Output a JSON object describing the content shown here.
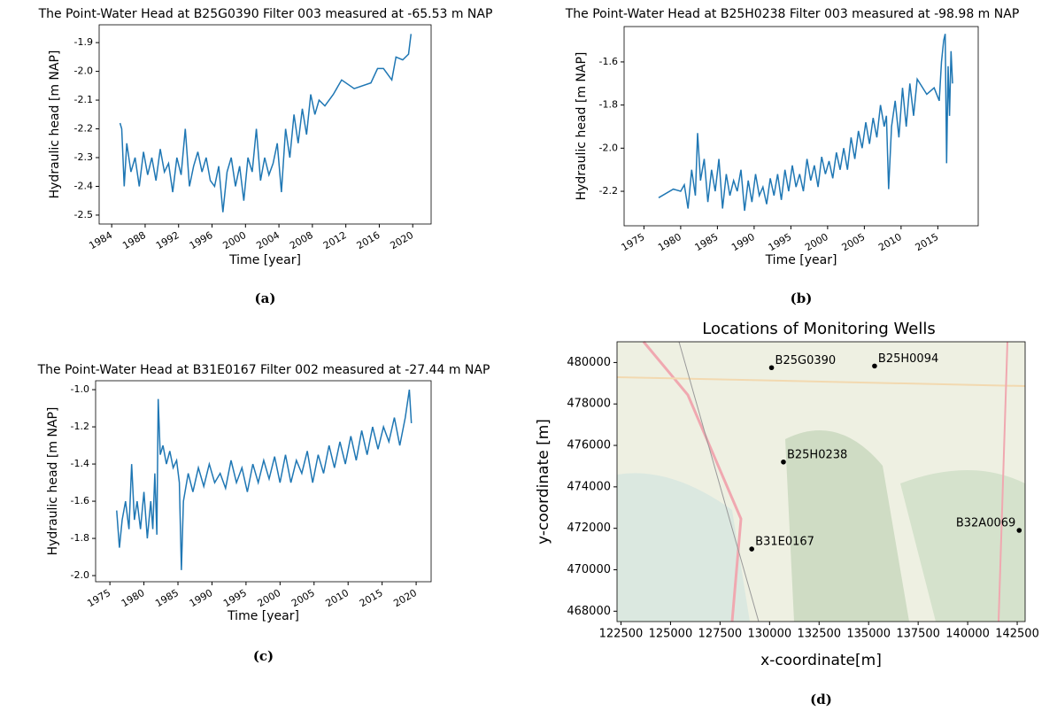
{
  "chart_data": [
    {
      "type": "line",
      "title": "The Point-Water Head at B25G0390 Filter 003 measured at -65.53 m NAP",
      "xlabel": "Time [year]",
      "ylabel": "Hydraulic head [m NAP]",
      "caption": "(a)",
      "color": "#1f77b4",
      "x": [
        1985.0,
        1985.2,
        1985.5,
        1985.8,
        1986.3,
        1986.8,
        1987.3,
        1987.8,
        1988.3,
        1988.8,
        1989.3,
        1989.8,
        1990.3,
        1990.8,
        1991.3,
        1991.8,
        1992.3,
        1992.8,
        1993.3,
        1993.8,
        1994.3,
        1994.8,
        1995.3,
        1995.8,
        1996.3,
        1996.8,
        1997.3,
        1997.8,
        1998.3,
        1998.8,
        1999.3,
        1999.8,
        2000.3,
        2000.8,
        2001.3,
        2001.8,
        2002.3,
        2002.8,
        2003.3,
        2003.8,
        2004.3,
        2004.8,
        2005.3,
        2005.8,
        2006.3,
        2006.8,
        2007.3,
        2007.8,
        2008.3,
        2008.8,
        2009.5,
        2010.5,
        2011.5,
        2013.0,
        2015.0,
        2015.8,
        2016.5,
        2017.5,
        2018.0,
        2018.8,
        2019.5,
        2019.8
      ],
      "values": [
        -2.18,
        -2.2,
        -2.4,
        -2.25,
        -2.35,
        -2.3,
        -2.4,
        -2.28,
        -2.36,
        -2.3,
        -2.38,
        -2.27,
        -2.35,
        -2.32,
        -2.42,
        -2.3,
        -2.36,
        -2.2,
        -2.4,
        -2.33,
        -2.28,
        -2.35,
        -2.3,
        -2.38,
        -2.4,
        -2.33,
        -2.49,
        -2.35,
        -2.3,
        -2.4,
        -2.33,
        -2.45,
        -2.3,
        -2.35,
        -2.2,
        -2.38,
        -2.3,
        -2.36,
        -2.32,
        -2.25,
        -2.42,
        -2.2,
        -2.3,
        -2.15,
        -2.25,
        -2.13,
        -2.22,
        -2.08,
        -2.15,
        -2.1,
        -2.12,
        -2.08,
        -2.03,
        -2.06,
        -2.04,
        -1.99,
        -1.99,
        -2.03,
        -1.95,
        -1.96,
        -1.94,
        -1.87
      ],
      "xlim": [
        1982.5,
        2022.2
      ],
      "ylim": [
        -2.531,
        -1.838
      ],
      "xticks": [
        1984,
        1988,
        1992,
        1996,
        2000,
        2004,
        2008,
        2012,
        2016,
        2020
      ],
      "yticks": [
        -1.9,
        {
          "value": -2,
          "label": "-2.0"
        },
        -2.1,
        -2.2,
        -2.3,
        -2.4,
        -2.5
      ]
    },
    {
      "type": "line",
      "title": "The Point-Water Head at B25H0238 Filter 003 measured at -98.98 m NAP",
      "xlabel": "Time [year]",
      "ylabel": "Hydraulic head [m NAP]",
      "caption": "(b)",
      "color": "#1f77b4",
      "x": [
        1977.0,
        1979.0,
        1980.0,
        1980.5,
        1981.0,
        1981.5,
        1982.0,
        1982.3,
        1982.7,
        1983.2,
        1983.7,
        1984.2,
        1984.7,
        1985.2,
        1985.7,
        1986.2,
        1986.7,
        1987.2,
        1987.7,
        1988.2,
        1988.7,
        1989.2,
        1989.7,
        1990.2,
        1990.7,
        1991.2,
        1991.7,
        1992.2,
        1992.7,
        1993.2,
        1993.7,
        1994.2,
        1994.7,
        1995.2,
        1995.7,
        1996.2,
        1996.7,
        1997.2,
        1997.7,
        1998.2,
        1998.7,
        1999.2,
        1999.7,
        2000.2,
        2000.7,
        2001.2,
        2001.7,
        2002.2,
        2002.7,
        2003.2,
        2003.7,
        2004.2,
        2004.7,
        2005.2,
        2005.7,
        2006.2,
        2006.7,
        2007.2,
        2007.7,
        2008.0,
        2008.3,
        2008.7,
        2009.2,
        2009.7,
        2010.2,
        2010.7,
        2011.2,
        2011.7,
        2012.2,
        2013.5,
        2014.5,
        2015.2,
        2015.5,
        2015.8,
        2016.0,
        2016.2,
        2016.4,
        2016.6,
        2016.8,
        2017.0
      ],
      "values": [
        -2.23,
        -2.19,
        -2.2,
        -2.17,
        -2.28,
        -2.1,
        -2.22,
        -1.93,
        -2.15,
        -2.05,
        -2.25,
        -2.1,
        -2.2,
        -2.05,
        -2.28,
        -2.12,
        -2.22,
        -2.15,
        -2.2,
        -2.1,
        -2.29,
        -2.15,
        -2.25,
        -2.12,
        -2.22,
        -2.18,
        -2.26,
        -2.14,
        -2.22,
        -2.12,
        -2.24,
        -2.1,
        -2.2,
        -2.08,
        -2.18,
        -2.12,
        -2.2,
        -2.05,
        -2.15,
        -2.08,
        -2.18,
        -2.04,
        -2.12,
        -2.06,
        -2.14,
        -2.02,
        -2.1,
        -2.0,
        -2.1,
        -1.95,
        -2.05,
        -1.92,
        -2.0,
        -1.88,
        -1.98,
        -1.86,
        -1.95,
        -1.8,
        -1.9,
        -1.85,
        -2.19,
        -1.9,
        -1.78,
        -1.95,
        -1.72,
        -1.9,
        -1.7,
        -1.85,
        -1.68,
        -1.75,
        -1.72,
        -1.78,
        -1.6,
        -1.5,
        -1.47,
        -2.07,
        -1.62,
        -1.85,
        -1.55,
        -1.7
      ],
      "xlim": [
        1972.3,
        2020.5
      ],
      "ylim": [
        -2.36,
        -1.436
      ],
      "xticks": [
        1975,
        1980,
        1985,
        1990,
        1995,
        2000,
        2005,
        2010,
        2015
      ],
      "yticks": [
        -1.6,
        -1.8,
        {
          "value": -2,
          "label": "-2.0"
        },
        -2.2
      ]
    },
    {
      "type": "line",
      "title": "The Point-Water Head at B31E0167 Filter 002 measured at -27.44 m NAP",
      "xlabel": "Time [year]",
      "ylabel": "Hydraulic head [m NAP]",
      "caption": "(c)",
      "color": "#1f77b4",
      "x": [
        1976.0,
        1976.4,
        1976.8,
        1977.3,
        1977.8,
        1978.2,
        1978.6,
        1979.0,
        1979.5,
        1980.0,
        1980.5,
        1981.0,
        1981.3,
        1981.6,
        1981.9,
        1982.1,
        1982.4,
        1982.8,
        1983.3,
        1983.8,
        1984.3,
        1984.8,
        1985.2,
        1985.5,
        1985.8,
        1986.5,
        1987.2,
        1988.0,
        1988.8,
        1989.6,
        1990.4,
        1991.2,
        1992.0,
        1992.8,
        1993.6,
        1994.4,
        1995.2,
        1996.0,
        1996.8,
        1997.6,
        1998.4,
        1999.2,
        2000.0,
        2000.8,
        2001.6,
        2002.4,
        2003.2,
        2004.0,
        2004.8,
        2005.6,
        2006.4,
        2007.2,
        2008.0,
        2008.8,
        2009.6,
        2010.4,
        2011.2,
        2012.0,
        2012.8,
        2013.6,
        2014.4,
        2015.2,
        2016.0,
        2016.8,
        2017.6,
        2018.4,
        2019.0,
        2019.3
      ],
      "values": [
        -1.65,
        -1.85,
        -1.7,
        -1.6,
        -1.75,
        -1.4,
        -1.7,
        -1.6,
        -1.75,
        -1.55,
        -1.8,
        -1.6,
        -1.75,
        -1.45,
        -1.78,
        -1.05,
        -1.35,
        -1.3,
        -1.4,
        -1.33,
        -1.42,
        -1.38,
        -1.5,
        -1.97,
        -1.6,
        -1.45,
        -1.55,
        -1.42,
        -1.52,
        -1.4,
        -1.5,
        -1.45,
        -1.53,
        -1.38,
        -1.5,
        -1.42,
        -1.55,
        -1.4,
        -1.5,
        -1.38,
        -1.48,
        -1.36,
        -1.5,
        -1.35,
        -1.5,
        -1.38,
        -1.45,
        -1.33,
        -1.5,
        -1.35,
        -1.45,
        -1.3,
        -1.42,
        -1.28,
        -1.4,
        -1.25,
        -1.38,
        -1.22,
        -1.35,
        -1.2,
        -1.32,
        -1.2,
        -1.28,
        -1.15,
        -1.3,
        -1.15,
        -1.0,
        -1.18
      ],
      "xlim": [
        1972.9,
        2022.2
      ],
      "ylim": [
        -2.033,
        -0.952
      ],
      "xticks": [
        1975,
        1980,
        1985,
        1990,
        1995,
        2000,
        2005,
        2010,
        2015,
        2020
      ],
      "yticks": [
        {
          "value": -1,
          "label": "-1.0"
        },
        -1.2,
        -1.4,
        -1.6,
        -1.8,
        {
          "value": -2,
          "label": "-2.0"
        }
      ]
    },
    {
      "type": "scatter",
      "title": "Locations of Monitoring Wells",
      "xlabel": "x-coordinate[m]",
      "ylabel": "y-coordinate [m]",
      "caption": "(d)",
      "color": "#000000",
      "labels": [
        "B25G0390",
        "B25H0094",
        "B25H0238",
        "B31E0167",
        "B32A0069"
      ],
      "x": [
        130100,
        135300,
        130700,
        129100,
        142600
      ],
      "values": [
        479750,
        479830,
        475200,
        471000,
        471900
      ],
      "xlim": [
        122300,
        142900
      ],
      "ylim": [
        467500,
        481000
      ],
      "xticks": [
        122500,
        125000,
        127500,
        130000,
        132500,
        135000,
        137500,
        140000,
        142500
      ],
      "yticks": [
        468000,
        470000,
        472000,
        474000,
        476000,
        478000,
        480000
      ]
    }
  ]
}
